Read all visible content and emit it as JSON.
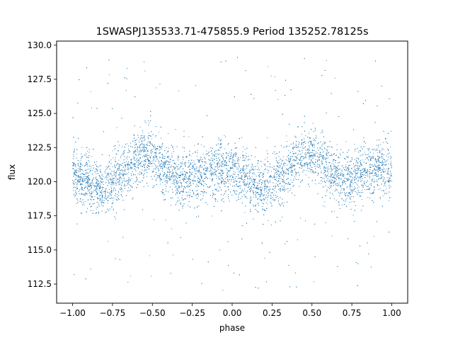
{
  "chart_data": {
    "type": "scatter",
    "title": "1SWASPJ135533.71-475855.9 Period 135252.78125s",
    "xlabel": "phase",
    "ylabel": "flux",
    "xlim": [
      -1.1,
      1.1
    ],
    "ylim": [
      111.1,
      130.3
    ],
    "x_ticks": [
      -1.0,
      -0.75,
      -0.5,
      -0.25,
      0.0,
      0.25,
      0.5,
      0.75,
      1.0
    ],
    "x_tick_labels": [
      "−1.00",
      "−0.75",
      "−0.50",
      "−0.25",
      "0.00",
      "0.25",
      "0.50",
      "0.75",
      "1.00"
    ],
    "y_ticks": [
      112.5,
      115.0,
      117.5,
      120.0,
      122.5,
      125.0,
      127.5,
      130.0
    ],
    "y_tick_labels": [
      "112.5",
      "115.0",
      "117.5",
      "120.0",
      "122.5",
      "125.0",
      "127.5",
      "130.0"
    ],
    "grid": false,
    "marker_color": "#1f77b4",
    "series": [
      {
        "x": [
          -1.0,
          -0.9,
          -0.8,
          -0.7,
          -0.6,
          -0.55,
          -0.5,
          -0.4,
          -0.3,
          -0.2,
          -0.1,
          0.0,
          0.1,
          0.2,
          0.3,
          0.4,
          0.45,
          0.5,
          0.6,
          0.7,
          0.8,
          0.9,
          1.0
        ],
        "y": [
          120.5,
          120.0,
          119.5,
          120.5,
          121.7,
          122.0,
          121.8,
          120.8,
          120.0,
          120.5,
          121.0,
          120.8,
          120.0,
          119.5,
          120.5,
          121.7,
          122.0,
          121.8,
          120.8,
          120.0,
          120.5,
          121.0,
          120.9
        ]
      }
    ]
  }
}
